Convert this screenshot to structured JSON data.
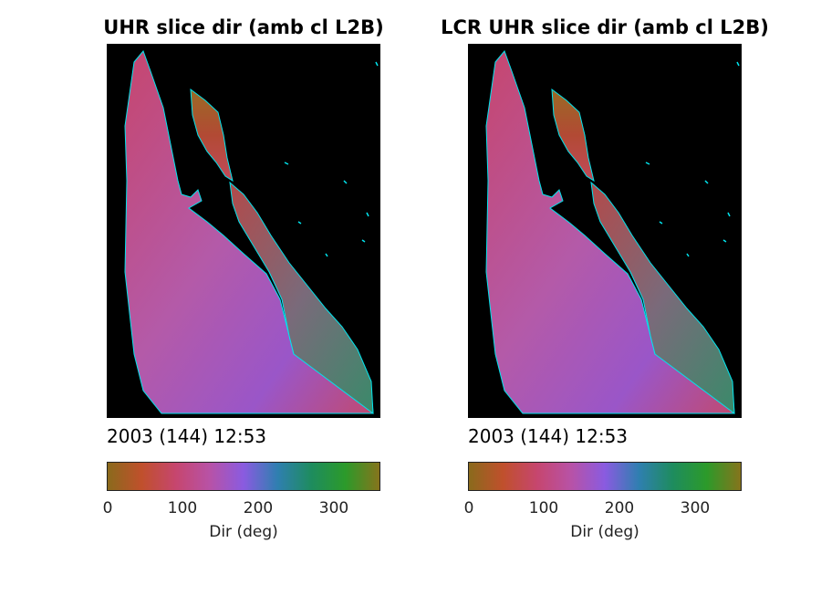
{
  "panels": [
    {
      "title": "UHR slice dir (amb cl L2B)",
      "timestamp": "2003 (144) 12:53",
      "colorbar": {
        "label": "Dir (deg)",
        "ticks": [
          "0",
          "100",
          "200",
          "300"
        ],
        "range": [
          0,
          360
        ]
      }
    },
    {
      "title": "LCR UHR slice dir (amb cl L2B)",
      "timestamp": "2003 (144) 12:53",
      "colorbar": {
        "label": "Dir (deg)",
        "ticks": [
          "0",
          "100",
          "200",
          "300"
        ],
        "range": [
          0,
          360
        ]
      }
    }
  ],
  "colors": {
    "background": "#000000",
    "coastline": "#00e5ee",
    "colormap": [
      "#8a6a1c",
      "#c0502c",
      "#c6466e",
      "#b852a6",
      "#8a5be0",
      "#2f7fb0",
      "#1e8c5e",
      "#2c9a2a",
      "#86741c"
    ]
  }
}
